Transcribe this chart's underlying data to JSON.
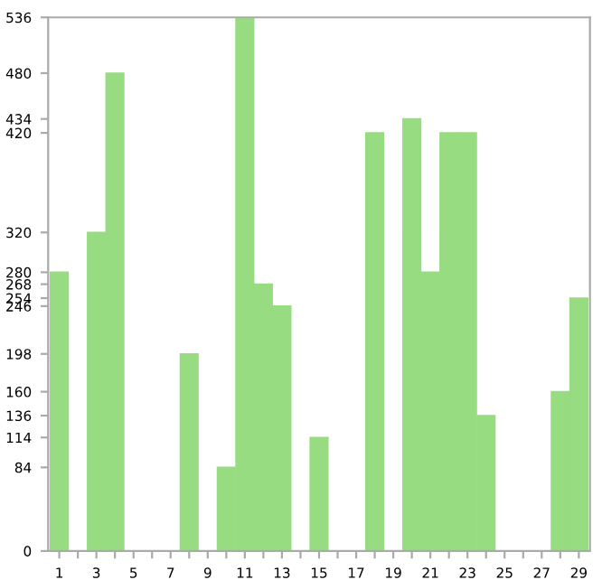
{
  "chart_data": {
    "type": "bar",
    "categories": [
      "1",
      null,
      "3",
      null,
      "5",
      null,
      "7",
      null,
      "9",
      null,
      "11",
      null,
      "13",
      null,
      "15",
      null,
      "17",
      null,
      "19",
      null,
      "21",
      null,
      "23",
      null,
      "25",
      null,
      "27",
      null,
      "29"
    ],
    "values": [
      280,
      null,
      320,
      480,
      null,
      0,
      0,
      198,
      null,
      84,
      536,
      268,
      246,
      null,
      114,
      null,
      0,
      420,
      null,
      434,
      280,
      420,
      420,
      136,
      null,
      0,
      0,
      160,
      254
    ],
    "color": "#98dc82",
    "ylim": [
      0,
      536
    ],
    "yticks": [
      0,
      84,
      114,
      136,
      160,
      198,
      246,
      254,
      268,
      280,
      320,
      420,
      434,
      480,
      536
    ],
    "grid": false
  }
}
